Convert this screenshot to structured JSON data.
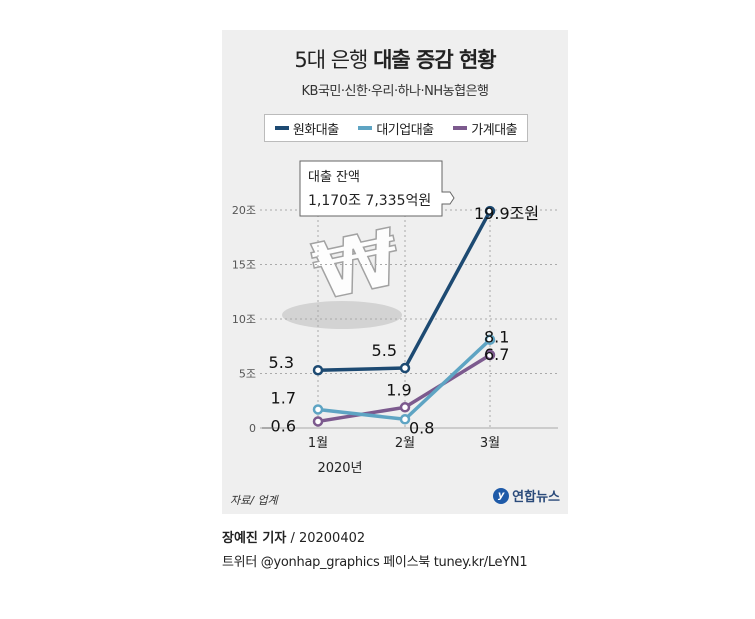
{
  "header": {
    "title_prefix": "5대 은행",
    "title_bold": "대출 증감 현황",
    "subtitle": "KB국민·신한·우리·하나·NH농협은행"
  },
  "annotation": {
    "line1": "대출 잔액",
    "line2": "1,170조 7,335억원"
  },
  "source": "자료/ 업계",
  "logo": "연합뉴스",
  "credit": {
    "author": "장예진 기자",
    "date": " / 20200402"
  },
  "social": "트위터 @yonhap_graphics  페이스북 tuney.kr/LeYN1",
  "colors": {
    "won": "#1d4a72",
    "corporate": "#5ea4c3",
    "household": "#7c5a8e",
    "grid": "#aaaaaa"
  },
  "chart_data": {
    "type": "line",
    "categories": [
      "1월",
      "2월",
      "3월"
    ],
    "x_sublabel": "2020년",
    "y_ticks": [
      "0",
      "5조",
      "10조",
      "15조",
      "20조"
    ],
    "y_tick_values": [
      0,
      5,
      10,
      15,
      20
    ],
    "ylim": [
      0,
      20
    ],
    "grid": true,
    "legend_position": "top",
    "series": [
      {
        "name": "원화대출",
        "values": [
          5.3,
          5.5,
          19.9
        ],
        "labels": [
          "5.3",
          "5.5",
          "19.9조원"
        ]
      },
      {
        "name": "대기업대출",
        "values": [
          1.7,
          0.8,
          8.1
        ],
        "labels": [
          "1.7",
          "0.8",
          "8.1"
        ]
      },
      {
        "name": "가계대출",
        "values": [
          0.6,
          1.9,
          6.7
        ],
        "labels": [
          "0.6",
          "1.9",
          "6.7"
        ]
      }
    ]
  }
}
